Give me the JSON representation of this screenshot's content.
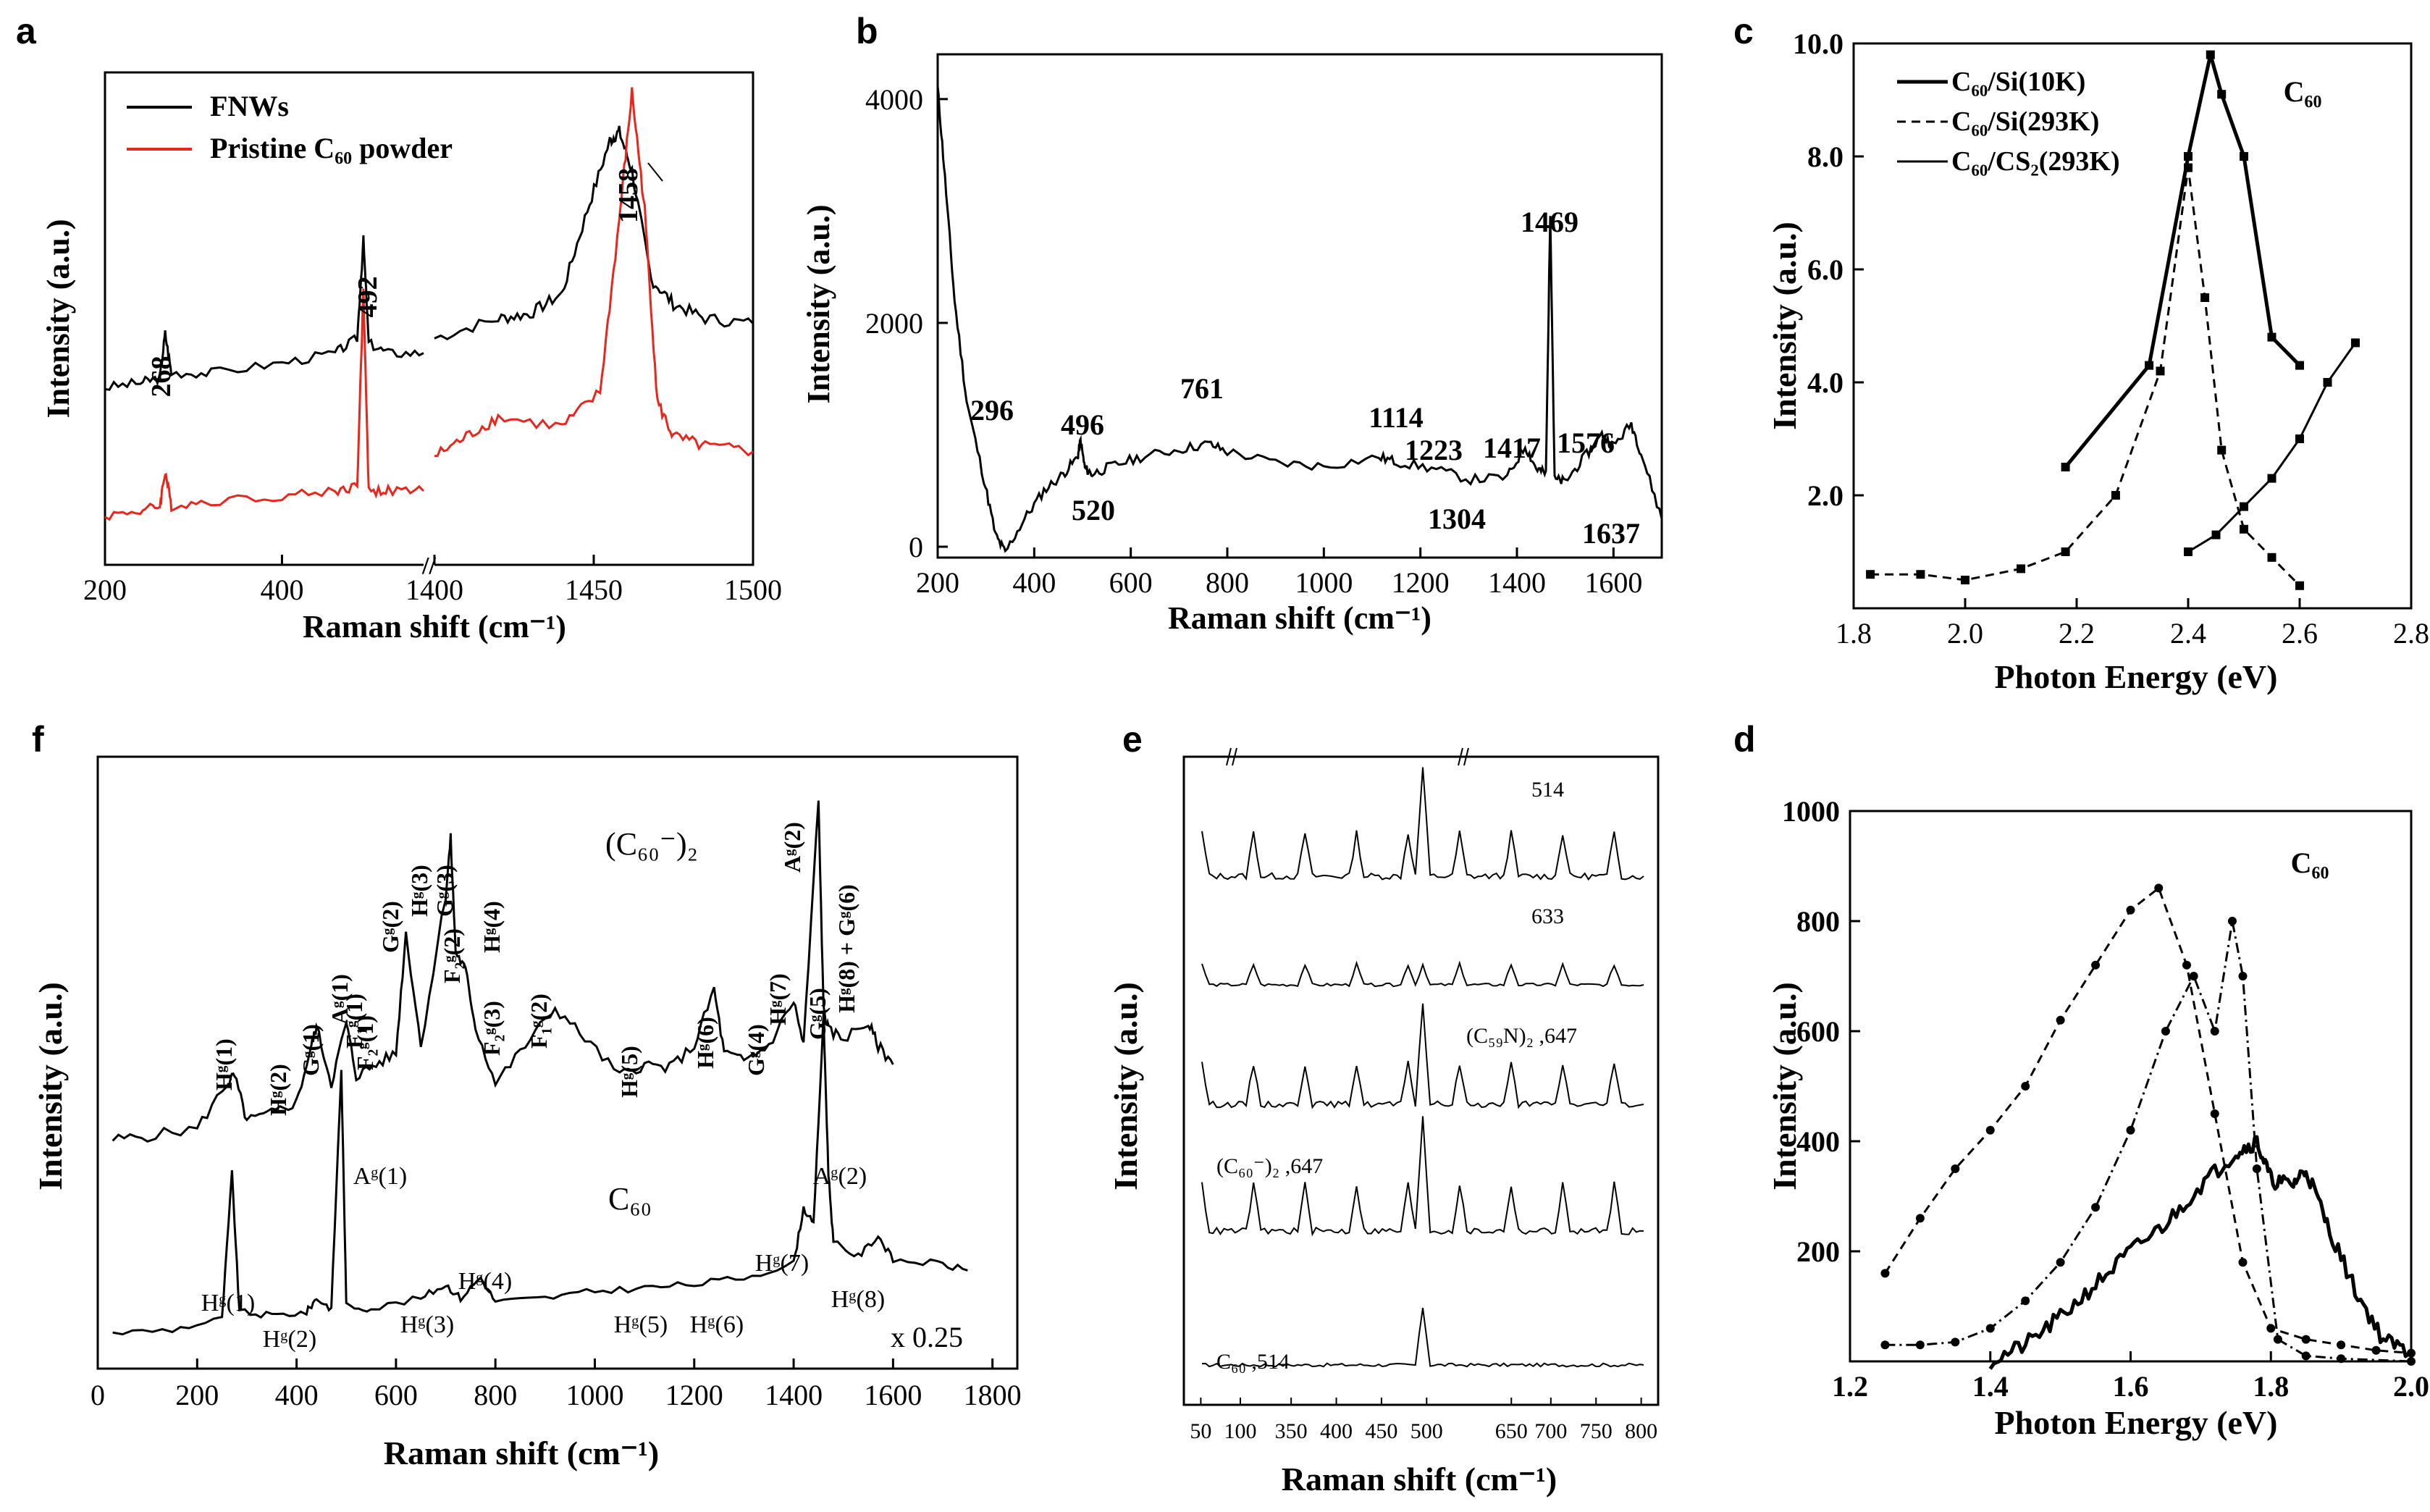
{
  "figure": {
    "panel_letters": [
      "a",
      "b",
      "c",
      "d",
      "e",
      "f"
    ]
  },
  "chart_data": [
    {
      "id": "a",
      "type": "line",
      "xlabel": "Raman shift (cm⁻¹)",
      "ylabel": "Intensity (a.u.)",
      "x_ticks_left": [
        "200",
        "400"
      ],
      "x_ticks_right": [
        "1400",
        "1450",
        "1500"
      ],
      "axis_break": "//",
      "legend": [
        {
          "name": "FNWs",
          "color": "#000000"
        },
        {
          "name": "Pristine C₆₀ powder",
          "color": "#e8261c"
        }
      ],
      "peak_labels": [
        "268",
        "492",
        "1458"
      ],
      "series": [
        {
          "name": "FNWs",
          "color": "#000000",
          "left": {
            "x": [
              200,
              240,
              262,
              268,
              275,
              320,
              400,
              460,
              485,
              492,
              498,
              520,
              560
            ],
            "y": [
              0.36,
              0.37,
              0.38,
              0.47,
              0.39,
              0.39,
              0.41,
              0.43,
              0.46,
              0.66,
              0.45,
              0.43,
              0.43
            ]
          },
          "right": {
            "x": [
              1400,
              1420,
              1430,
              1440,
              1448,
              1455,
              1458,
              1462,
              1468,
              1475,
              1485,
              1500
            ],
            "y": [
              0.46,
              0.5,
              0.51,
              0.55,
              0.72,
              0.86,
              0.88,
              0.8,
              0.58,
              0.53,
              0.5,
              0.49
            ]
          }
        },
        {
          "name": "Pristine C60 powder",
          "color": "#e8261c",
          "left": {
            "x": [
              200,
              240,
              262,
              268,
              275,
              320,
              400,
              460,
              485,
              492,
              498,
              520,
              560
            ],
            "y": [
              0.1,
              0.11,
              0.12,
              0.19,
              0.12,
              0.13,
              0.14,
              0.15,
              0.16,
              0.56,
              0.15,
              0.15,
              0.15
            ]
          },
          "right": {
            "x": [
              1400,
              1410,
              1420,
              1440,
              1452,
              1458,
              1462,
              1466,
              1470,
              1475,
              1485,
              1500
            ],
            "y": [
              0.22,
              0.26,
              0.3,
              0.28,
              0.35,
              0.7,
              0.96,
              0.72,
              0.33,
              0.26,
              0.24,
              0.23
            ]
          }
        }
      ]
    },
    {
      "id": "b",
      "type": "line",
      "xlabel": "Raman shift (cm⁻¹)",
      "ylabel": "Intensity (a.u.)",
      "xlim": [
        200,
        1700
      ],
      "ylim": [
        0,
        4400
      ],
      "x_ticks": [
        200,
        400,
        600,
        800,
        1000,
        1200,
        1400,
        1600
      ],
      "y_ticks": [
        0,
        2000,
        4000
      ],
      "peak_labels": [
        "296",
        "496",
        "520",
        "761",
        "1114",
        "1223",
        "1304",
        "1417",
        "1469",
        "1576",
        "1637"
      ],
      "series": [
        {
          "name": "spectrum",
          "x": [
            200,
            215,
            235,
            260,
            296,
            320,
            340,
            380,
            420,
            460,
            490,
            496,
            505,
            520,
            560,
            620,
            700,
            761,
            800,
            900,
            1000,
            1114,
            1150,
            1223,
            1304,
            1380,
            1417,
            1440,
            1460,
            1469,
            1478,
            1500,
            1540,
            1576,
            1600,
            1637,
            1660,
            1700
          ],
          "y": [
            4100,
            3300,
            2200,
            1300,
            600,
            100,
            -50,
            250,
            500,
            650,
            800,
            950,
            700,
            650,
            720,
            800,
            870,
            920,
            850,
            750,
            720,
            800,
            760,
            700,
            600,
            620,
            900,
            700,
            650,
            3000,
            600,
            580,
            800,
            1000,
            900,
            1100,
            800,
            250
          ]
        }
      ]
    },
    {
      "id": "c",
      "type": "line",
      "xlabel": "Photon Energy (eV)",
      "ylabel": "Intensity (a.u.)",
      "xlim": [
        1.8,
        2.8
      ],
      "ylim": [
        0,
        10
      ],
      "x_ticks": [
        "1.8",
        "2.0",
        "2.2",
        "2.4",
        "2.6",
        "2.8"
      ],
      "y_ticks": [
        "2.0",
        "4.0",
        "6.0",
        "8.0",
        "10.0"
      ],
      "annotation": "C₆₀",
      "legend": [
        {
          "name": "C₆₀/Si(10K)",
          "style": "thick-solid"
        },
        {
          "name": "C₆₀/Si(293K)",
          "style": "dashed"
        },
        {
          "name": "C₆₀/CS₂(293K)",
          "style": "thin-solid"
        }
      ],
      "series": [
        {
          "name": "C60/Si(10K)",
          "x": [
            2.18,
            2.33,
            2.4,
            2.44,
            2.46,
            2.5,
            2.55,
            2.6
          ],
          "y": [
            2.5,
            4.3,
            8.0,
            9.8,
            9.1,
            8.0,
            4.8,
            4.3
          ]
        },
        {
          "name": "C60/Si(293K)",
          "x": [
            1.83,
            1.92,
            2.0,
            2.1,
            2.18,
            2.27,
            2.35,
            2.4,
            2.43,
            2.46,
            2.5,
            2.55,
            2.6
          ],
          "y": [
            0.6,
            0.6,
            0.5,
            0.7,
            1.0,
            2.0,
            4.2,
            7.8,
            5.5,
            2.8,
            1.4,
            0.9,
            0.4
          ]
        },
        {
          "name": "C60/CS2(293K)",
          "x": [
            2.4,
            2.45,
            2.5,
            2.55,
            2.6,
            2.65,
            2.7
          ],
          "y": [
            1.0,
            1.3,
            1.8,
            2.3,
            3.0,
            4.0,
            4.7
          ]
        }
      ]
    },
    {
      "id": "d",
      "type": "line",
      "xlabel": "Photon Energy (eV)",
      "ylabel": "Intensity (a.u.)",
      "xlim": [
        1.2,
        2.0
      ],
      "ylim": [
        0,
        1000
      ],
      "x_ticks": [
        "1.2",
        "1.4",
        "1.6",
        "1.8",
        "2.0"
      ],
      "y_ticks": [
        "200",
        "400",
        "600",
        "800",
        "1000"
      ],
      "annotation": "C₆₀",
      "series": [
        {
          "name": "dashed",
          "x": [
            1.25,
            1.3,
            1.35,
            1.4,
            1.45,
            1.5,
            1.55,
            1.6,
            1.64,
            1.68,
            1.72,
            1.76,
            1.8,
            1.85,
            1.9,
            1.95,
            2.0
          ],
          "y": [
            160,
            260,
            350,
            420,
            500,
            620,
            720,
            820,
            860,
            720,
            450,
            180,
            60,
            40,
            30,
            20,
            15
          ]
        },
        {
          "name": "dash-dot",
          "x": [
            1.25,
            1.3,
            1.35,
            1.4,
            1.45,
            1.5,
            1.55,
            1.6,
            1.65,
            1.69,
            1.72,
            1.745,
            1.76,
            1.78,
            1.81,
            1.85,
            1.9,
            2.0
          ],
          "y": [
            30,
            30,
            35,
            60,
            110,
            180,
            280,
            420,
            600,
            700,
            600,
            800,
            700,
            350,
            40,
            10,
            5,
            0
          ]
        },
        {
          "name": "thick-solid",
          "x": [
            1.4,
            1.45,
            1.5,
            1.55,
            1.6,
            1.65,
            1.7,
            1.75,
            1.78,
            1.8,
            1.83,
            1.85,
            1.88,
            1.92,
            1.96,
            2.0
          ],
          "y": [
            0,
            30,
            80,
            140,
            200,
            250,
            320,
            380,
            400,
            330,
            320,
            350,
            250,
            130,
            40,
            15
          ]
        }
      ]
    },
    {
      "id": "e",
      "type": "line",
      "xlabel": "Raman shift (cm⁻¹)",
      "ylabel": "Intensity (a.u.)",
      "x_ticks": [
        "50",
        "100",
        "350",
        "400",
        "450",
        "500",
        "650",
        "700",
        "750",
        "800"
      ],
      "trace_labels": [
        "514",
        "633",
        "(C₅₉N)₂ ,647",
        "(C₆₀⁻)₂ ,647",
        "C₆₀ ,514"
      ],
      "series": [
        {
          "name": "514"
        },
        {
          "name": "633"
        },
        {
          "name": "(C59N)2,647"
        },
        {
          "name": "(C60-)2,647"
        },
        {
          "name": "C60,514"
        }
      ]
    },
    {
      "id": "f",
      "type": "line",
      "xlabel": "Raman shift (cm⁻¹)",
      "ylabel": "Intensity (a.u.)",
      "xlim": [
        0,
        1850
      ],
      "x_ticks": [
        0,
        200,
        400,
        600,
        800,
        1000,
        1200,
        1400,
        1600,
        1800
      ],
      "upper_label": "(C₆₀⁻)₂",
      "lower_label": "C₆₀",
      "scale_note": "x 0.25",
      "upper_modes": [
        "Hᵍ(1)",
        "Hᵍ(2)",
        "Gᵍ(1)",
        "Aᵍ(1)",
        "F₁ᵍ(1)",
        "F₂ᵍ(1)",
        "Gᵍ(2)",
        "Hᵍ(3)",
        "Gᵍ(3)",
        "F₂ᵍ(2)",
        "Hᵍ(4)",
        "F₂ᵍ(3)",
        "F₁ᵍ(2)",
        "Hᵍ(5)",
        "Hᵍ(6)",
        "Gᵍ(4)",
        "Hᵍ(7)",
        "Aᵍ(2)",
        "Gᵍ(5)",
        "Hᵍ(8) + Gᵍ(6)"
      ],
      "lower_modes": [
        "Hᵍ(1)",
        "Hᵍ(2)",
        "Aᵍ(1)",
        "Hᵍ(3)",
        "Hᵍ(4)",
        "Hᵍ(5)",
        "Hᵍ(6)",
        "Hᵍ(7)",
        "Aᵍ(2)",
        "Hᵍ(8)"
      ],
      "upper_series": {
        "x": [
          30,
          100,
          200,
          260,
          275,
          300,
          350,
          400,
          430,
          440,
          470,
          500,
          520,
          560,
          600,
          620,
          650,
          700,
          710,
          720,
          740,
          760,
          800,
          860,
          920,
          980,
          1050,
          1100,
          1150,
          1200,
          1240,
          1260,
          1300,
          1350,
          1400,
          1420,
          1450,
          1460,
          1470,
          1500,
          1550,
          1570,
          1600
        ],
        "y": [
          0.05,
          0.06,
          0.08,
          0.2,
          0.22,
          0.1,
          0.12,
          0.15,
          0.3,
          0.35,
          0.2,
          0.36,
          0.22,
          0.25,
          0.28,
          0.6,
          0.3,
          0.7,
          0.85,
          0.55,
          0.5,
          0.35,
          0.2,
          0.3,
          0.4,
          0.32,
          0.22,
          0.25,
          0.24,
          0.3,
          0.45,
          0.28,
          0.26,
          0.3,
          0.42,
          0.3,
          0.95,
          0.4,
          0.34,
          0.32,
          0.36,
          0.3,
          0.25
        ]
      },
      "lower_series": {
        "x": [
          30,
          150,
          250,
          270,
          285,
          350,
          420,
          440,
          470,
          490,
          500,
          550,
          650,
          700,
          730,
          770,
          800,
          900,
          1000,
          1100,
          1200,
          1300,
          1400,
          1420,
          1440,
          1460,
          1470,
          1480,
          1530,
          1570,
          1600,
          1690,
          1750
        ],
        "y": [
          0.04,
          0.05,
          0.08,
          0.5,
          0.1,
          0.09,
          0.1,
          0.14,
          0.11,
          0.8,
          0.12,
          0.11,
          0.14,
          0.18,
          0.14,
          0.2,
          0.13,
          0.14,
          0.16,
          0.17,
          0.18,
          0.2,
          0.24,
          0.4,
          0.35,
          0.95,
          0.5,
          0.3,
          0.26,
          0.32,
          0.25,
          0.24,
          0.22
        ]
      }
    }
  ]
}
